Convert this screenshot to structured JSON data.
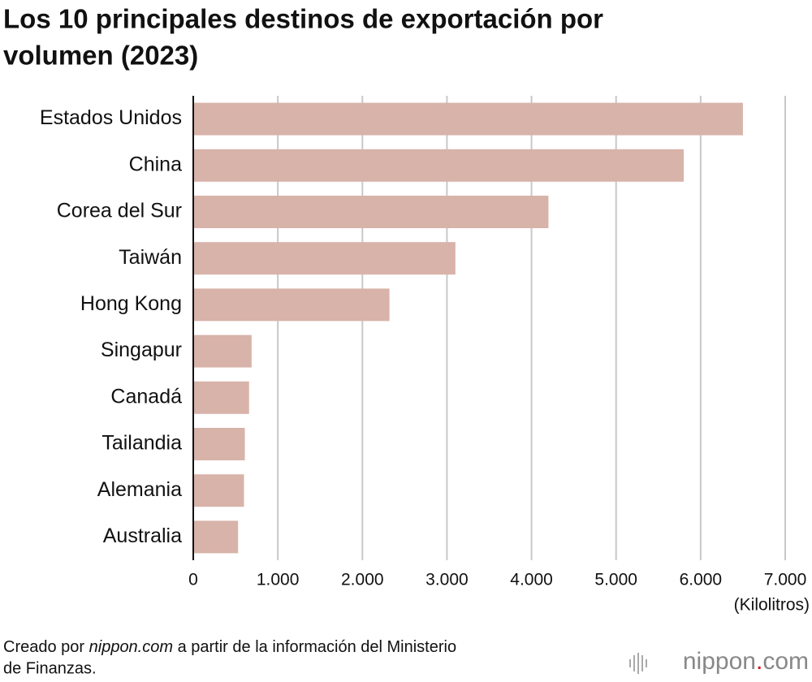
{
  "chart_data": {
    "type": "bar",
    "orientation": "horizontal",
    "title": [
      "Los 10 principales destinos de exportación por",
      "volumen (2023)"
    ],
    "categories": [
      "Estados Unidos",
      "China",
      "Corea del Sur",
      "Taiwán",
      "Hong Kong",
      "Singapur",
      "Canadá",
      "Tailandia",
      "Alemania",
      "Australia"
    ],
    "values": [
      6500,
      5800,
      4200,
      3100,
      2320,
      690,
      660,
      610,
      600,
      530
    ],
    "color": "#d8b3aa",
    "xlim": [
      0,
      7000
    ],
    "xticks": [
      0,
      {
        "value": 1000,
        "label": "1.000"
      },
      {
        "value": 2000,
        "label": "2.000"
      },
      {
        "value": 3000,
        "label": "3.000"
      },
      {
        "value": 4000,
        "label": "4.000"
      },
      {
        "value": 5000,
        "label": "5.000"
      },
      {
        "value": 6000,
        "label": "6.000"
      },
      {
        "value": 7000,
        "label": "7.000"
      }
    ],
    "grid": true,
    "x_label": "(Kilolitros)",
    "source": [
      "Creado por ",
      "nippon.com",
      " a partir de la información del Ministerio",
      "de Finanzas."
    ],
    "logo": [
      "nippon",
      ".",
      "com"
    ]
  }
}
